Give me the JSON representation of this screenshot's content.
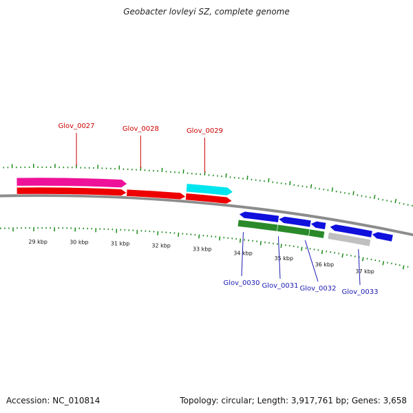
{
  "title": "Geobacter lovleyi SZ, complete genome",
  "footer": {
    "accession": "Accession: NC_010814",
    "summary": "Topology: circular; Length: 3,917,761 bp; Genes: 3,658"
  },
  "colors": {
    "backbone": "#8c8c8c",
    "tick": "#1a8a1a",
    "upper_label": "#cc0000",
    "lower_label": "#1a1ab4",
    "gene_red": "#ee0000",
    "gene_pink": "#ee1199",
    "gene_cyan": "#00e5ee",
    "gene_blue": "#1010dd",
    "gene_green": "#2a8a2a",
    "gene_gray": "#c0c0c0"
  },
  "scale": {
    "unit": "kbp",
    "labels": [
      "29 kbp",
      "30 kbp",
      "31 kbp",
      "32 kbp",
      "33 kbp",
      "34 kbp",
      "35 kbp",
      "36 kbp",
      "37 kbp"
    ]
  },
  "gene_labels_top": [
    "Glov_0027",
    "Glov_0028",
    "Glov_0029"
  ],
  "gene_labels_bottom": [
    "Glov_0030",
    "Glov_0031",
    "Glov_0032",
    "Glov_0033"
  ],
  "features": [
    {
      "track": "top_outer",
      "kbp_start": 28.6,
      "kbp_end": 31.2,
      "color": "gene_pink",
      "strand": "+"
    },
    {
      "track": "top_outer",
      "kbp_start": 32.6,
      "kbp_end": 33.7,
      "color": "gene_cyan",
      "strand": "+"
    },
    {
      "track": "top_inner",
      "kbp_start": 28.6,
      "kbp_end": 31.2,
      "color": "gene_red",
      "strand": "+"
    },
    {
      "track": "top_inner",
      "kbp_start": 31.2,
      "kbp_end": 32.6,
      "color": "gene_red",
      "strand": "+"
    },
    {
      "track": "top_inner",
      "kbp_start": 32.6,
      "kbp_end": 33.7,
      "color": "gene_red",
      "strand": "+"
    },
    {
      "track": "bottom_inner",
      "kbp_start": 33.9,
      "kbp_end": 34.85,
      "color": "gene_blue",
      "strand": "-"
    },
    {
      "track": "bottom_inner",
      "kbp_start": 34.85,
      "kbp_end": 35.62,
      "color": "gene_blue",
      "strand": "-"
    },
    {
      "track": "bottom_inner",
      "kbp_start": 35.62,
      "kbp_end": 35.98,
      "color": "gene_blue",
      "strand": "-"
    },
    {
      "track": "bottom_inner",
      "kbp_start": 36.08,
      "kbp_end": 37.1,
      "color": "gene_blue",
      "strand": "-"
    },
    {
      "track": "bottom_inner",
      "kbp_start": 37.1,
      "kbp_end": 37.6,
      "color": "gene_blue",
      "strand": "-"
    },
    {
      "track": "bottom_outer",
      "kbp_start": 33.9,
      "kbp_end": 34.85,
      "color": "gene_green",
      "strand": "none"
    },
    {
      "track": "bottom_outer",
      "kbp_start": 34.85,
      "kbp_end": 35.62,
      "color": "gene_green",
      "strand": "none"
    },
    {
      "track": "bottom_outer",
      "kbp_start": 35.62,
      "kbp_end": 35.98,
      "color": "gene_green",
      "strand": "none"
    },
    {
      "track": "bottom_outer",
      "kbp_start": 36.08,
      "kbp_end": 37.1,
      "color": "gene_gray",
      "strand": "none"
    }
  ]
}
